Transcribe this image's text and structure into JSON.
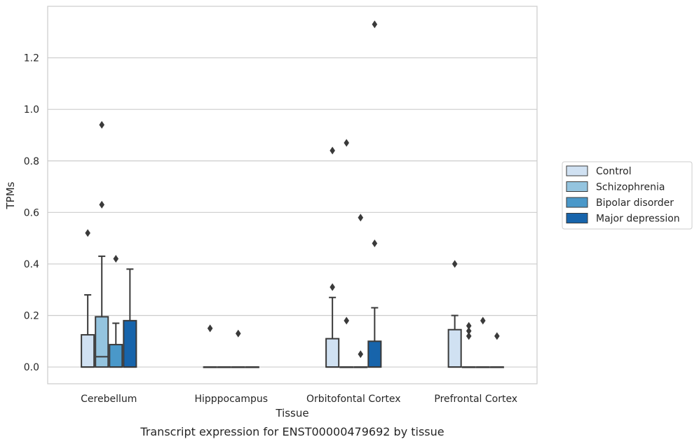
{
  "chart_data": {
    "type": "box",
    "title": "Transcript expression for ENST00000479692 by tissue",
    "xlabel": "Tissue",
    "ylabel": "TPMs",
    "ylim": [
      -0.065,
      1.4
    ],
    "yticks": [
      0.0,
      0.2,
      0.4,
      0.6,
      0.8,
      1.0,
      1.2
    ],
    "ytick_labels": [
      "0.0",
      "0.2",
      "0.4",
      "0.6",
      "0.8",
      "1.0",
      "1.2"
    ],
    "grid": true,
    "legend_position": "right",
    "categories": [
      "Cerebellum",
      "Hipppocampus",
      "Orbitofontal Cortex",
      "Prefrontal Cortex"
    ],
    "series": [
      {
        "name": "Control",
        "color": "#d0e1f2",
        "boxes": [
          {
            "q1": 0.0,
            "median": 0.0,
            "q3": 0.125,
            "whisker_low": 0.0,
            "whisker_high": 0.28,
            "outliers": [
              0.52
            ]
          },
          {
            "q1": 0.0,
            "median": 0.0,
            "q3": 0.0,
            "whisker_low": 0.0,
            "whisker_high": 0.0,
            "outliers": [
              0.15
            ]
          },
          {
            "q1": 0.0,
            "median": 0.0,
            "q3": 0.11,
            "whisker_low": 0.0,
            "whisker_high": 0.27,
            "outliers": [
              0.31,
              0.84
            ]
          },
          {
            "q1": 0.0,
            "median": 0.0,
            "q3": 0.145,
            "whisker_low": 0.0,
            "whisker_high": 0.2,
            "outliers": [
              0.4
            ]
          }
        ]
      },
      {
        "name": "Schizophrenia",
        "color": "#94c4df",
        "boxes": [
          {
            "q1": 0.0,
            "median": 0.04,
            "q3": 0.195,
            "whisker_low": 0.0,
            "whisker_high": 0.43,
            "outliers": [
              0.63,
              0.94
            ]
          },
          {
            "q1": 0.0,
            "median": 0.0,
            "q3": 0.0,
            "whisker_low": 0.0,
            "whisker_high": 0.0,
            "outliers": []
          },
          {
            "q1": 0.0,
            "median": 0.0,
            "q3": 0.0,
            "whisker_low": 0.0,
            "whisker_high": 0.0,
            "outliers": [
              0.18,
              0.87
            ]
          },
          {
            "q1": 0.0,
            "median": 0.0,
            "q3": 0.0,
            "whisker_low": 0.0,
            "whisker_high": 0.0,
            "outliers": [
              0.12,
              0.14,
              0.16
            ]
          }
        ]
      },
      {
        "name": "Bipolar disorder",
        "color": "#4a98c9",
        "boxes": [
          {
            "q1": 0.0,
            "median": 0.0,
            "q3": 0.087,
            "whisker_low": 0.0,
            "whisker_high": 0.17,
            "outliers": [
              0.42
            ]
          },
          {
            "q1": 0.0,
            "median": 0.0,
            "q3": 0.0,
            "whisker_low": 0.0,
            "whisker_high": 0.0,
            "outliers": [
              0.13
            ]
          },
          {
            "q1": 0.0,
            "median": 0.0,
            "q3": 0.0,
            "whisker_low": 0.0,
            "whisker_high": 0.0,
            "outliers": [
              0.05,
              0.58
            ]
          },
          {
            "q1": 0.0,
            "median": 0.0,
            "q3": 0.0,
            "whisker_low": 0.0,
            "whisker_high": 0.0,
            "outliers": [
              0.18
            ]
          }
        ]
      },
      {
        "name": "Major depression",
        "color": "#1764ab",
        "boxes": [
          {
            "q1": 0.0,
            "median": 0.0,
            "q3": 0.18,
            "whisker_low": 0.0,
            "whisker_high": 0.38,
            "outliers": []
          },
          {
            "q1": 0.0,
            "median": 0.0,
            "q3": 0.0,
            "whisker_low": 0.0,
            "whisker_high": 0.0,
            "outliers": []
          },
          {
            "q1": 0.0,
            "median": 0.0,
            "q3": 0.1,
            "whisker_low": 0.0,
            "whisker_high": 0.23,
            "outliers": [
              0.48,
              1.33
            ]
          },
          {
            "q1": 0.0,
            "median": 0.0,
            "q3": 0.0,
            "whisker_low": 0.0,
            "whisker_high": 0.0,
            "outliers": [
              0.12
            ]
          }
        ]
      }
    ]
  }
}
